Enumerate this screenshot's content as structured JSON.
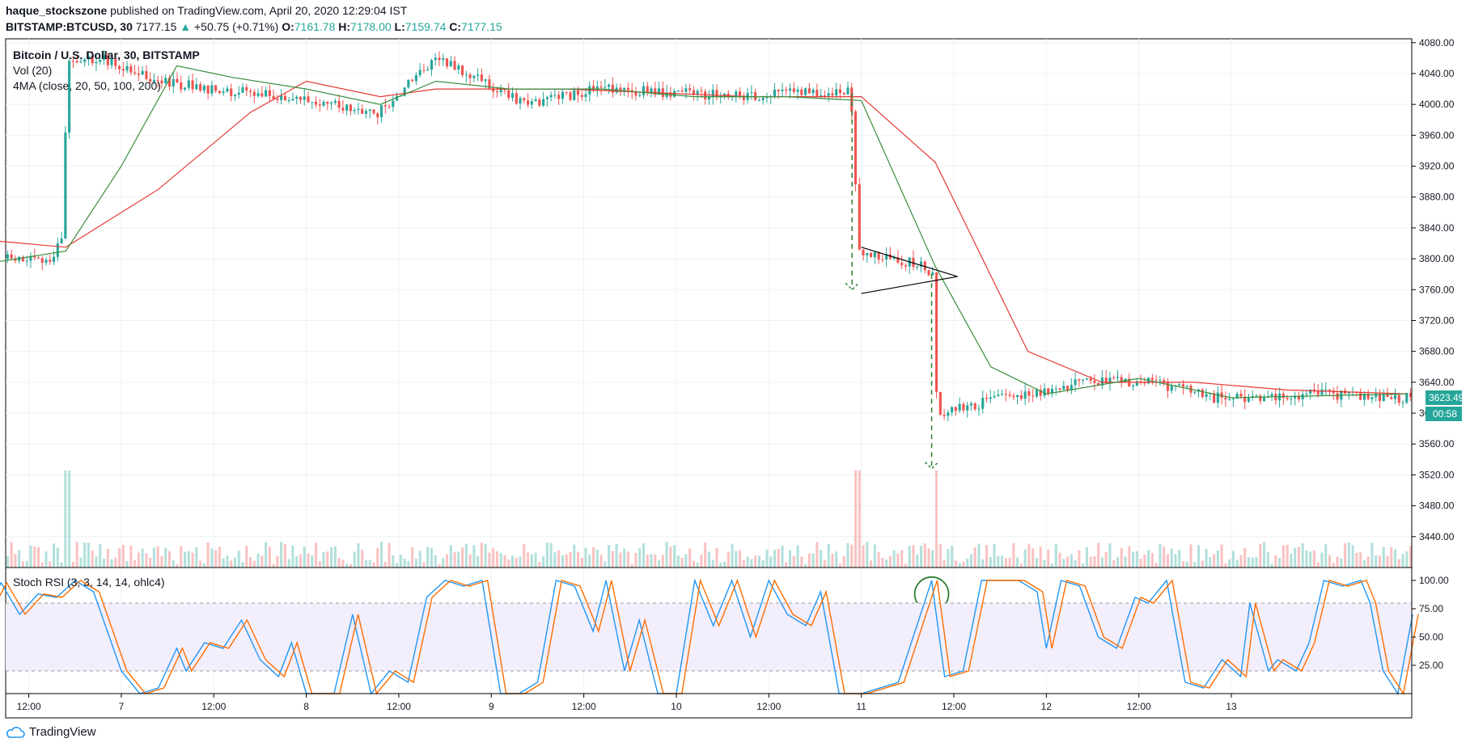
{
  "header": {
    "publisher": "haque_stockszone",
    "published_text": "published on TradingView.com, April 20, 2020 12:29:04 IST",
    "symbol": "BITSTAMP:BTCUSD, 30",
    "last": "7177.15",
    "change": "+50.75 (+0.71%)",
    "o_label": "O:",
    "o": "7161.78",
    "h_label": "H:",
    "h": "7178.00",
    "l_label": "L:",
    "l": "7159.74",
    "c_label": "C:",
    "c": "7177.15"
  },
  "legend": {
    "title": "Bitcoin / U.S. Dollar, 30, BITSTAMP",
    "vol": "Vol (20)",
    "ma": "4MA (close, 20, 50, 100, 200)",
    "stoch": "Stoch RSI (3, 3, 14, 14, ohlc4)"
  },
  "price_label": "3623.49",
  "countdown_label": "00:58",
  "branding": "TradingView",
  "colors": {
    "up": "#26a69a",
    "down": "#ef5350",
    "ma_fast": "#388e3c",
    "ma_slow": "#e53935",
    "stoch_k": "#2196f3",
    "stoch_d": "#ff6d00",
    "band_fill": "#f3eefc",
    "annotation": "#2e7d32"
  },
  "chart_data": {
    "type": "candlestick",
    "price_axis": {
      "ylim": [
        3400,
        4085
      ],
      "ticks": [
        "4080.00",
        "4040.00",
        "4000.00",
        "3960.00",
        "3920.00",
        "3880.00",
        "3840.00",
        "3800.00",
        "3760.00",
        "3720.00",
        "3680.00",
        "3640.00",
        "3600.00",
        "3560.00",
        "3520.00",
        "3480.00",
        "3440.00"
      ]
    },
    "time_axis": {
      "labels": [
        "12:00",
        "7",
        "12:00",
        "8",
        "12:00",
        "9",
        "12:00",
        "10",
        "12:00",
        "11",
        "12:00",
        "12",
        "12:00",
        "13"
      ]
    },
    "price_keypoints": [
      {
        "day": 6.375,
        "price": 3800
      },
      {
        "day": 6.62,
        "price": 3795
      },
      {
        "day": 6.69,
        "price": 3830
      },
      {
        "day": 6.72,
        "price": 4050
      },
      {
        "day": 6.9,
        "price": 4060
      },
      {
        "day": 7.2,
        "price": 4030
      },
      {
        "day": 7.5,
        "price": 4020
      },
      {
        "day": 7.9,
        "price": 4010
      },
      {
        "day": 8.4,
        "price": 3990
      },
      {
        "day": 8.72,
        "price": 4060
      },
      {
        "day": 9.2,
        "price": 4000
      },
      {
        "day": 9.6,
        "price": 4020
      },
      {
        "day": 10.4,
        "price": 4010
      },
      {
        "day": 10.95,
        "price": 4020
      },
      {
        "day": 11.0,
        "price": 3810
      },
      {
        "day": 11.35,
        "price": 3790
      },
      {
        "day": 11.4,
        "price": 3780
      },
      {
        "day": 11.42,
        "price": 3600
      },
      {
        "day": 11.8,
        "price": 3620
      },
      {
        "day": 12.2,
        "price": 3640
      },
      {
        "day": 12.6,
        "price": 3640
      },
      {
        "day": 12.9,
        "price": 3620
      },
      {
        "day": 13.5,
        "price": 3625
      },
      {
        "day": 13.95,
        "price": 3620
      }
    ],
    "ma_fast_points": [
      {
        "day": 6.0,
        "price": 3805
      },
      {
        "day": 6.3,
        "price": 3795
      },
      {
        "day": 6.7,
        "price": 3810
      },
      {
        "day": 7.0,
        "price": 3920
      },
      {
        "day": 7.3,
        "price": 4050
      },
      {
        "day": 7.6,
        "price": 4035
      },
      {
        "day": 8.0,
        "price": 4020
      },
      {
        "day": 8.4,
        "price": 4000
      },
      {
        "day": 8.7,
        "price": 4030
      },
      {
        "day": 9.1,
        "price": 4020
      },
      {
        "day": 9.6,
        "price": 4020
      },
      {
        "day": 10.1,
        "price": 4010
      },
      {
        "day": 10.6,
        "price": 4010
      },
      {
        "day": 11.0,
        "price": 4005
      },
      {
        "day": 11.4,
        "price": 3790
      },
      {
        "day": 11.7,
        "price": 3660
      },
      {
        "day": 12.0,
        "price": 3625
      },
      {
        "day": 12.5,
        "price": 3645
      },
      {
        "day": 13.0,
        "price": 3620
      },
      {
        "day": 13.95,
        "price": 3625
      }
    ],
    "ma_slow_points": [
      {
        "day": 6.0,
        "price": 3830
      },
      {
        "day": 6.7,
        "price": 3815
      },
      {
        "day": 7.2,
        "price": 3890
      },
      {
        "day": 7.7,
        "price": 3990
      },
      {
        "day": 8.0,
        "price": 4030
      },
      {
        "day": 8.4,
        "price": 4010
      },
      {
        "day": 8.7,
        "price": 4020
      },
      {
        "day": 9.4,
        "price": 4020
      },
      {
        "day": 10.4,
        "price": 4010
      },
      {
        "day": 11.0,
        "price": 4010
      },
      {
        "day": 11.4,
        "price": 3925
      },
      {
        "day": 11.9,
        "price": 3680
      },
      {
        "day": 12.3,
        "price": 3640
      },
      {
        "day": 12.8,
        "price": 3640
      },
      {
        "day": 13.3,
        "price": 3630
      },
      {
        "day": 13.95,
        "price": 3625
      }
    ],
    "stoch_axis": {
      "ylim": [
        0,
        100
      ],
      "ticks": [
        "100.00",
        "75.00",
        "50.00",
        "25.00"
      ],
      "bands": [
        20,
        80
      ]
    },
    "stoch_k_points": [
      {
        "day": 6.0,
        "value": 15
      },
      {
        "day": 6.1,
        "value": 40
      },
      {
        "day": 6.2,
        "value": 95
      },
      {
        "day": 6.28,
        "value": 75
      },
      {
        "day": 6.35,
        "value": 98
      },
      {
        "day": 6.45,
        "value": 70
      },
      {
        "day": 6.55,
        "value": 88
      },
      {
        "day": 6.65,
        "value": 85
      },
      {
        "day": 6.75,
        "value": 100
      },
      {
        "day": 6.85,
        "value": 90
      },
      {
        "day": 7.0,
        "value": 20
      },
      {
        "day": 7.1,
        "value": 0
      },
      {
        "day": 7.2,
        "value": 5
      },
      {
        "day": 7.3,
        "value": 40
      },
      {
        "day": 7.35,
        "value": 20
      },
      {
        "day": 7.45,
        "value": 45
      },
      {
        "day": 7.55,
        "value": 40
      },
      {
        "day": 7.65,
        "value": 65
      },
      {
        "day": 7.75,
        "value": 30
      },
      {
        "day": 7.85,
        "value": 15
      },
      {
        "day": 7.92,
        "value": 45
      },
      {
        "day": 8.0,
        "value": 0
      },
      {
        "day": 8.15,
        "value": 0
      },
      {
        "day": 8.25,
        "value": 70
      },
      {
        "day": 8.35,
        "value": 0
      },
      {
        "day": 8.45,
        "value": 20
      },
      {
        "day": 8.55,
        "value": 10
      },
      {
        "day": 8.65,
        "value": 85
      },
      {
        "day": 8.75,
        "value": 100
      },
      {
        "day": 8.85,
        "value": 95
      },
      {
        "day": 8.95,
        "value": 100
      },
      {
        "day": 9.05,
        "value": 0
      },
      {
        "day": 9.15,
        "value": 0
      },
      {
        "day": 9.25,
        "value": 10
      },
      {
        "day": 9.35,
        "value": 100
      },
      {
        "day": 9.45,
        "value": 95
      },
      {
        "day": 9.55,
        "value": 55
      },
      {
        "day": 9.62,
        "value": 100
      },
      {
        "day": 9.72,
        "value": 20
      },
      {
        "day": 9.8,
        "value": 65
      },
      {
        "day": 9.9,
        "value": 0
      },
      {
        "day": 10.0,
        "value": 0
      },
      {
        "day": 10.1,
        "value": 100
      },
      {
        "day": 10.2,
        "value": 60
      },
      {
        "day": 10.3,
        "value": 100
      },
      {
        "day": 10.4,
        "value": 50
      },
      {
        "day": 10.5,
        "value": 100
      },
      {
        "day": 10.6,
        "value": 70
      },
      {
        "day": 10.7,
        "value": 60
      },
      {
        "day": 10.78,
        "value": 90
      },
      {
        "day": 10.88,
        "value": 0
      },
      {
        "day": 11.0,
        "value": 0
      },
      {
        "day": 11.2,
        "value": 10
      },
      {
        "day": 11.3,
        "value": 60
      },
      {
        "day": 11.38,
        "value": 100
      },
      {
        "day": 11.45,
        "value": 15
      },
      {
        "day": 11.55,
        "value": 20
      },
      {
        "day": 11.65,
        "value": 100
      },
      {
        "day": 11.85,
        "value": 100
      },
      {
        "day": 11.95,
        "value": 90
      },
      {
        "day": 12.0,
        "value": 40
      },
      {
        "day": 12.08,
        "value": 100
      },
      {
        "day": 12.18,
        "value": 95
      },
      {
        "day": 12.28,
        "value": 50
      },
      {
        "day": 12.38,
        "value": 40
      },
      {
        "day": 12.48,
        "value": 85
      },
      {
        "day": 12.55,
        "value": 80
      },
      {
        "day": 12.65,
        "value": 100
      },
      {
        "day": 12.75,
        "value": 10
      },
      {
        "day": 12.85,
        "value": 5
      },
      {
        "day": 12.95,
        "value": 30
      },
      {
        "day": 13.05,
        "value": 15
      },
      {
        "day": 13.1,
        "value": 80
      },
      {
        "day": 13.2,
        "value": 20
      },
      {
        "day": 13.25,
        "value": 30
      },
      {
        "day": 13.35,
        "value": 20
      },
      {
        "day": 13.42,
        "value": 45
      },
      {
        "day": 13.5,
        "value": 100
      },
      {
        "day": 13.6,
        "value": 95
      },
      {
        "day": 13.7,
        "value": 100
      },
      {
        "day": 13.75,
        "value": 80
      },
      {
        "day": 13.82,
        "value": 20
      },
      {
        "day": 13.9,
        "value": 0
      },
      {
        "day": 13.98,
        "value": 70
      }
    ]
  }
}
